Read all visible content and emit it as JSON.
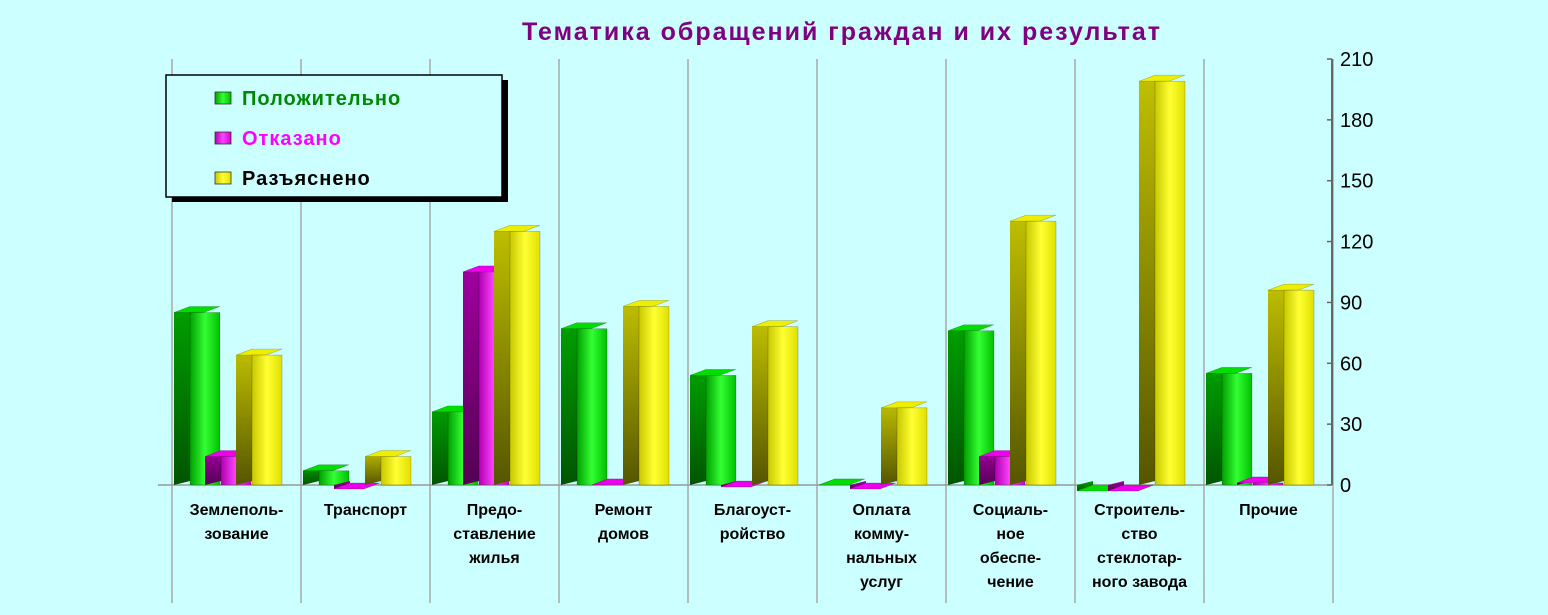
{
  "chart_data": {
    "type": "bar",
    "title": "Тематика обращений граждан и их результат",
    "xlabel": "",
    "ylabel": "",
    "ylim": [
      0,
      210
    ],
    "yticks": [
      0,
      30,
      60,
      90,
      120,
      150,
      180,
      210
    ],
    "y_axis_side": "right",
    "grid": "vertical category separators",
    "legend_position": "top-left",
    "categories": [
      [
        "Землеполь-",
        "зование"
      ],
      [
        "Транспорт"
      ],
      [
        "Предо-",
        "ставление",
        "жилья"
      ],
      [
        "Ремонт",
        "домов"
      ],
      [
        "Благоуст-",
        "ройство"
      ],
      [
        "Оплата",
        "комму-",
        "нальных",
        "услуг"
      ],
      [
        "Социаль-",
        "ное",
        "обеспе-",
        "чение"
      ],
      [
        "Строитель-",
        "ство",
        "стеклотар-",
        "ного завода"
      ],
      [
        "Прочие"
      ]
    ],
    "series": [
      {
        "name": "Положительно",
        "color": "#00dd00",
        "values": [
          88,
          10,
          39,
          80,
          57,
          3,
          79,
          0,
          58
        ]
      },
      {
        "name": "Отказано",
        "color": "#ee00ee",
        "values": [
          17,
          1,
          108,
          3,
          2,
          1,
          17,
          0,
          4
        ]
      },
      {
        "name": "Разъяснено",
        "color": "#eeee00",
        "values": [
          67,
          17,
          128,
          91,
          81,
          41,
          133,
          202,
          99
        ]
      }
    ],
    "legend_text_colors": [
      "#008800",
      "#ff00ff",
      "#000000"
    ]
  }
}
